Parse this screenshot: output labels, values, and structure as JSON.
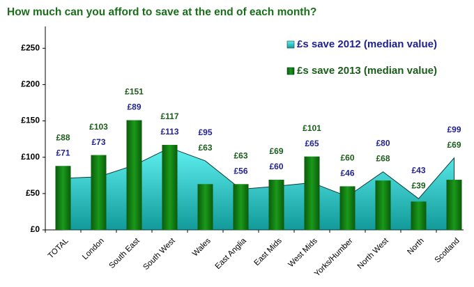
{
  "chart_data": {
    "type": "combo",
    "title": "How much can you afford to save at the end of each month?",
    "categories": [
      "TOTAL",
      "London",
      "South East",
      "South West",
      "Wales",
      "East Anglia",
      "East Mids",
      "West Mids",
      "Yorks/Humber",
      "North West",
      "North",
      "Scotland"
    ],
    "series": [
      {
        "name": "£s save 2012 (median value)",
        "type": "area",
        "color": "#33cccc",
        "label_color": "#1f1f8f",
        "values": [
          71,
          73,
          89,
          113,
          95,
          56,
          60,
          65,
          46,
          80,
          43,
          99
        ],
        "value_labels": [
          "£71",
          "£73",
          "£89",
          "£113",
          "£95",
          "£56",
          "£60",
          "£65",
          "£46",
          "£80",
          "£43",
          "£99"
        ]
      },
      {
        "name": "£s save 2013 (median value)",
        "type": "bar",
        "color": "#137a13",
        "label_color": "#1a5c1a",
        "values": [
          88,
          103,
          151,
          117,
          63,
          63,
          69,
          101,
          60,
          68,
          39,
          69
        ],
        "value_labels": [
          "£88",
          "£103",
          "£151",
          "£117",
          "£63",
          "£63",
          "£69",
          "£101",
          "£60",
          "£68",
          "£39",
          "£69"
        ]
      }
    ],
    "ylim": [
      0,
      280
    ],
    "yticks": [
      {
        "value": 0,
        "label": "£0"
      },
      {
        "value": 50,
        "label": "£50"
      },
      {
        "value": 100,
        "label": "£100"
      },
      {
        "value": 150,
        "label": "£150"
      },
      {
        "value": 200,
        "label": "£200"
      },
      {
        "value": 250,
        "label": "£250"
      }
    ],
    "grid": false,
    "legend": "top-right"
  }
}
